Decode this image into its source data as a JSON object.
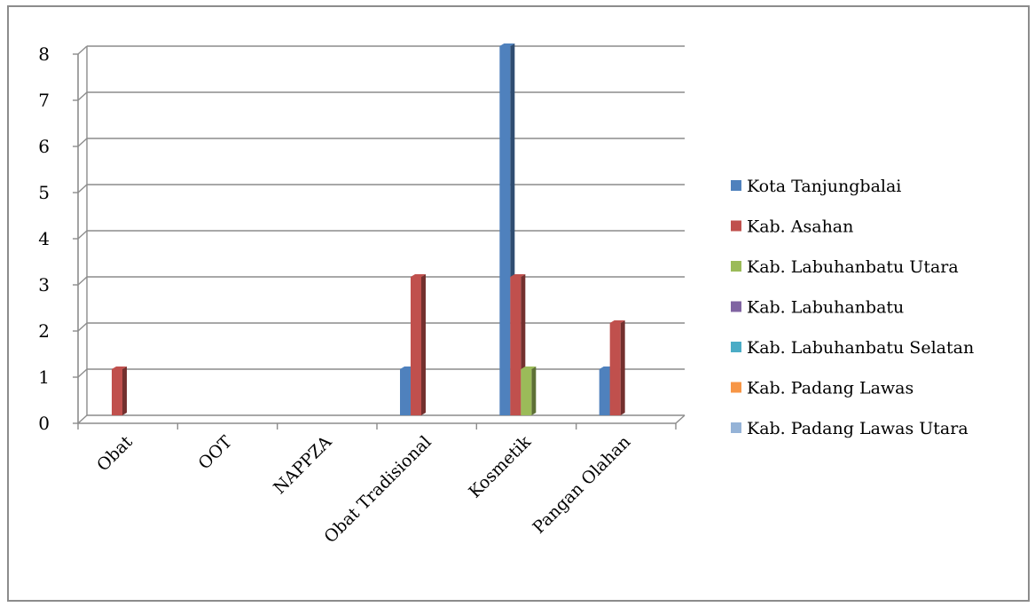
{
  "chart_data": {
    "type": "bar",
    "categories": [
      "Obat",
      "OOT",
      "NAPPZA",
      "Obat Tradisional",
      "Kosmetik",
      "Pangan Olahan"
    ],
    "ylim": [
      0,
      8
    ],
    "yticks": [
      0,
      1,
      2,
      3,
      4,
      5,
      6,
      7,
      8
    ],
    "grid": true,
    "legend_position": "right",
    "series": [
      {
        "name": "Kota Tanjungbalai",
        "color": "#4f81bd",
        "values": [
          0,
          0,
          0,
          1,
          8,
          1
        ]
      },
      {
        "name": "Kab. Asahan",
        "color": "#c0504d",
        "values": [
          1,
          0,
          0,
          3,
          3,
          2
        ]
      },
      {
        "name": "Kab. Labuhanbatu Utara",
        "color": "#9bbb59",
        "values": [
          0,
          0,
          0,
          0,
          1,
          0
        ]
      },
      {
        "name": "Kab. Labuhanbatu",
        "color": "#8064a2",
        "values": [
          0,
          0,
          0,
          0,
          0,
          0
        ]
      },
      {
        "name": "Kab. Labuhanbatu Selatan",
        "color": "#4bacc6",
        "values": [
          0,
          0,
          0,
          0,
          0,
          0
        ]
      },
      {
        "name": "Kab. Padang Lawas",
        "color": "#f79646",
        "values": [
          0,
          0,
          0,
          0,
          0,
          0
        ]
      },
      {
        "name": "Kab. Padang Lawas Utara",
        "color": "#95b3d7",
        "values": [
          0,
          0,
          0,
          0,
          0,
          0
        ]
      }
    ]
  }
}
